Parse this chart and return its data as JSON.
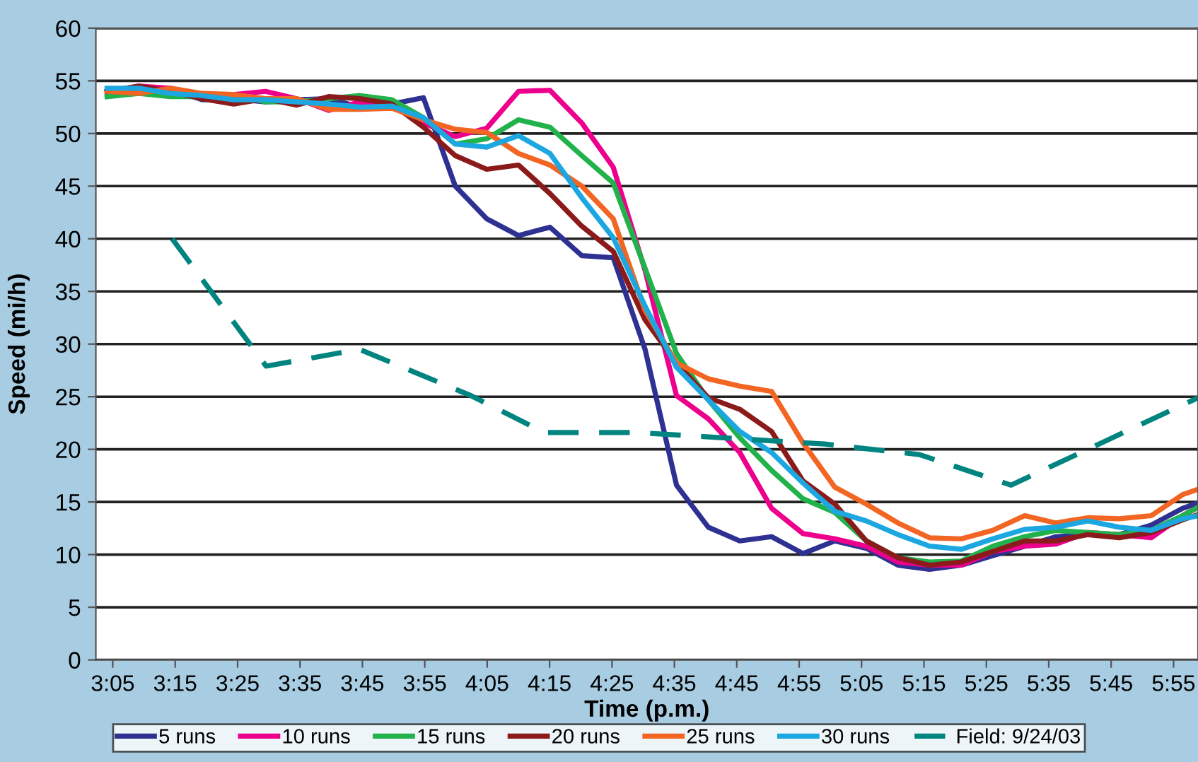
{
  "chart_data": {
    "type": "line",
    "xlabel": "Time (p.m.)",
    "ylabel": "Speed (mi/h)",
    "x": [
      3.068,
      3.153,
      3.237,
      3.322,
      3.406,
      3.491,
      3.575,
      3.66,
      3.744,
      3.829,
      3.913,
      3.998,
      4.082,
      4.167,
      4.251,
      4.336,
      4.42,
      4.505,
      4.589,
      4.674,
      4.758,
      4.843,
      4.927,
      5.012,
      5.096,
      5.181,
      5.265,
      5.35,
      5.434,
      5.519,
      5.603,
      5.688,
      5.772,
      5.857,
      5.941,
      5.982
    ],
    "series": [
      {
        "name": "5 runs",
        "color": "#2e3192",
        "values": [
          54,
          54.3,
          54.3,
          53.2,
          53.3,
          53,
          53.2,
          53.3,
          52.5,
          52.8,
          53.4,
          45,
          41.9,
          40.3,
          41.1,
          38.4,
          38.2,
          29.5,
          16.6,
          12.6,
          11.3,
          11.7,
          10.1,
          11.3,
          10.6,
          9,
          8.6,
          9,
          9.9,
          10.8,
          11.7,
          11.9,
          11.9,
          12.8,
          14.4,
          14.9
        ]
      },
      {
        "name": "10 runs",
        "color": "#ec008c",
        "values": [
          54,
          54.5,
          54.3,
          53.7,
          53.7,
          54,
          53.3,
          52.2,
          53,
          52.8,
          51,
          49.7,
          50.5,
          54,
          54.1,
          51,
          46.8,
          37,
          25.1,
          22.9,
          19.7,
          14.4,
          12,
          11.5,
          10.8,
          9.3,
          9,
          9,
          10.3,
          10.8,
          11,
          12.1,
          11.9,
          11.6,
          13.7,
          14.5
        ]
      },
      {
        "name": "15 runs",
        "color": "#22b24c",
        "values": [
          53.5,
          53.8,
          53.5,
          53.5,
          53.7,
          53,
          53,
          53.3,
          53.6,
          53.2,
          51.5,
          49,
          49.5,
          51.3,
          50.6,
          47.9,
          45.3,
          37.2,
          29.1,
          24.7,
          21.1,
          18,
          15.3,
          14,
          11.3,
          9.7,
          9.3,
          9.4,
          10.8,
          11.7,
          12.3,
          12.1,
          11.9,
          12.3,
          13.7,
          14.5
        ]
      },
      {
        "name": "20 runs",
        "color": "#8b1a1a",
        "values": [
          54,
          54.5,
          54,
          53.3,
          52.8,
          53.3,
          52.7,
          53.5,
          53.3,
          52.8,
          50.6,
          47.9,
          46.6,
          47,
          44.3,
          41.2,
          38.8,
          32.3,
          28.2,
          24.9,
          23.8,
          21.7,
          17,
          14.8,
          11.3,
          9.7,
          9,
          9.3,
          10.3,
          11.3,
          11.3,
          11.9,
          11.6,
          12.1,
          13.3,
          13.8
        ]
      },
      {
        "name": "25 runs",
        "color": "#f26522",
        "values": [
          54,
          53.8,
          54.3,
          53.8,
          53.7,
          53.3,
          53.3,
          52.3,
          52.3,
          52.4,
          51.3,
          50.4,
          50.1,
          48.1,
          47,
          45,
          41.9,
          33.2,
          28.2,
          26.7,
          26,
          25.5,
          20.6,
          16.4,
          14.8,
          13,
          11.6,
          11.5,
          12.3,
          13.7,
          13,
          13.5,
          13.4,
          13.7,
          15.7,
          16.2
        ]
      },
      {
        "name": "30 runs",
        "color": "#1ca7e0",
        "values": [
          54.3,
          54.3,
          53.8,
          53.6,
          53.2,
          53.2,
          53,
          52.8,
          52.5,
          52.6,
          51.5,
          49,
          48.7,
          49.8,
          48.1,
          43.9,
          40.1,
          33.6,
          27.8,
          24.7,
          21.7,
          19.7,
          16.8,
          14.1,
          13.2,
          11.9,
          10.8,
          10.5,
          11.5,
          12.4,
          12.6,
          13.2,
          12.6,
          12.3,
          13.4,
          13.7
        ]
      },
      {
        "name": "Field: 9/24/03",
        "color": "#00847f",
        "line_style": "dashed",
        "x": [
          3.242,
          3.493,
          3.742,
          4.04,
          4.236,
          4.482,
          4.985,
          5.238,
          5.483,
          5.982
        ],
        "values": [
          40,
          27.9,
          29.5,
          25.1,
          21.6,
          21.6,
          20.5,
          19.5,
          16.6,
          24.9
        ]
      }
    ],
    "xlim": [
      3.038,
      5.982
    ],
    "xticks": [
      {
        "value": 3.0833,
        "label": "3:05"
      },
      {
        "value": 3.25,
        "label": "3:15"
      },
      {
        "value": 3.4167,
        "label": "3:25"
      },
      {
        "value": 3.5833,
        "label": "3:35"
      },
      {
        "value": 3.75,
        "label": "3:45"
      },
      {
        "value": 3.9167,
        "label": "3:55"
      },
      {
        "value": 4.0833,
        "label": "4:05"
      },
      {
        "value": 4.25,
        "label": "4:15"
      },
      {
        "value": 4.4167,
        "label": "4:25"
      },
      {
        "value": 4.5833,
        "label": "4:35"
      },
      {
        "value": 4.75,
        "label": "4:45"
      },
      {
        "value": 4.9167,
        "label": "4:55"
      },
      {
        "value": 5.0833,
        "label": "5:05"
      },
      {
        "value": 5.25,
        "label": "5:15"
      },
      {
        "value": 5.4167,
        "label": "5:25"
      },
      {
        "value": 5.5833,
        "label": "5:35"
      },
      {
        "value": 5.75,
        "label": "5:45"
      },
      {
        "value": 5.9167,
        "label": "5:55"
      }
    ],
    "ylim": [
      0,
      60
    ],
    "yticks": [
      0,
      5,
      10,
      15,
      20,
      25,
      30,
      35,
      40,
      45,
      50,
      55,
      60
    ],
    "grid": "y",
    "legend": "bottom",
    "marker": "none",
    "line_style": "solid"
  }
}
